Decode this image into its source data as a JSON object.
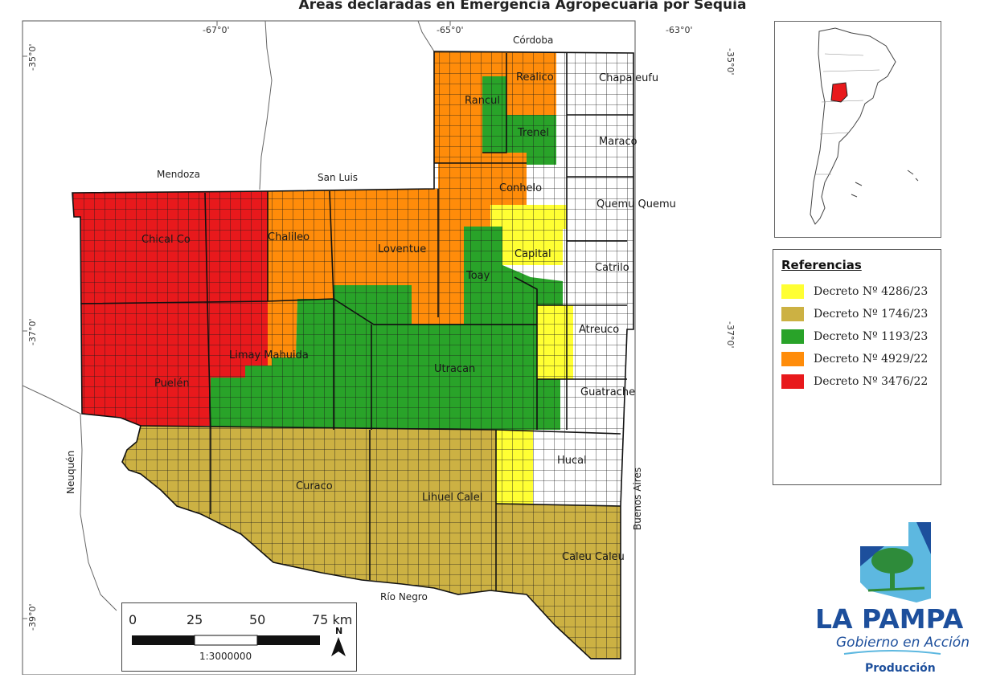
{
  "title": "Áreas declaradas en Emergencia Agropecuaria por Sequía",
  "coords": {
    "lon": [
      "-67°0'",
      "-65°0'",
      "-63°0'"
    ],
    "lat": [
      "-35°0'",
      "-37°0'",
      "-39°0'"
    ]
  },
  "neighbors": {
    "cordoba": "Córdoba",
    "mendoza": "Mendoza",
    "san_luis": "San Luis",
    "neuquen": "Neuquén",
    "rio_negro": "Río Negro",
    "buenos_aires": "Buenos Aires"
  },
  "departments": {
    "chapaleufu": "Chapaleufu",
    "realico": "Realico",
    "rancul": "Rancul",
    "trenel": "Trenel",
    "maraco": "Maraco",
    "conhelo": "Conhelo",
    "quemu_quemu": "Quemu Quemu",
    "chical_co": "Chical Co",
    "chalileo": "Chalileo",
    "loventue": "Loventue",
    "capital": "Capital",
    "toay": "Toay",
    "catrilo": "Catrilo",
    "atreuco": "Atreuco",
    "limay_mahuida": "Limay Mahuida",
    "puelen": "Puelén",
    "utracan": "Utracan",
    "guatrache": "Guatrache",
    "hucal": "Hucal",
    "curaco": "Curaco",
    "lihuel_calel": "Lihuel Calel",
    "caleu_caleu": "Caleu Caleu"
  },
  "legend": {
    "title": "Referencias",
    "items": [
      {
        "label": "Decreto Nº 4286/23",
        "color": "#ffff33"
      },
      {
        "label": "Decreto Nº 1746/23",
        "color": "#ccb143"
      },
      {
        "label": "Decreto Nº 1193/23",
        "color": "#29a329"
      },
      {
        "label": "Decreto Nº 4929/22",
        "color": "#ff8c0a"
      },
      {
        "label": "Decreto Nº 3476/22",
        "color": "#e8191c"
      }
    ]
  },
  "scale": {
    "ticks": [
      "0",
      "25",
      "50",
      "75 km"
    ],
    "ratio": "1:3000000"
  },
  "logo": {
    "name": "LA PAMPA",
    "slogan": "Gobierno en Acción",
    "unit": "Producción"
  }
}
